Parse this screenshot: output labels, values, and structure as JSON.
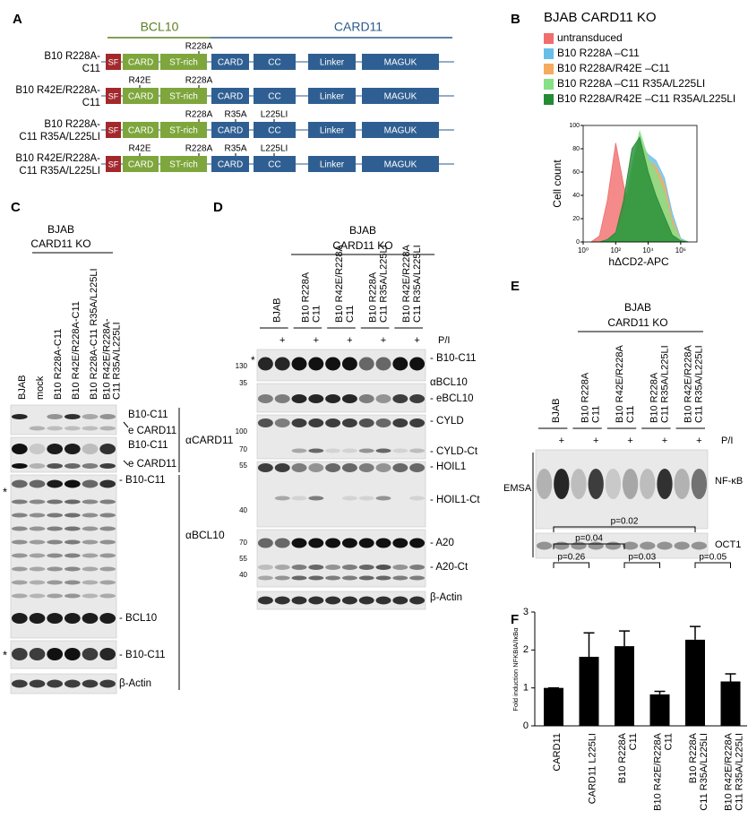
{
  "panel_a": {
    "label": "A",
    "bcl10": "BCL10",
    "card11": "CARD11",
    "constructs": [
      {
        "name": [
          "B10 R228A-",
          "C11"
        ],
        "domains": [
          "SF",
          "CARD",
          "ST-rich",
          "CARD",
          "CC",
          "Linker",
          "MAGUK"
        ],
        "mutations": [
          null,
          "R228A",
          null,
          null
        ]
      },
      {
        "name": [
          "B10 R42E/R228A-",
          "C11"
        ],
        "domains": [
          "SF",
          "CARD",
          "ST-rich",
          "CARD",
          "CC",
          "Linker",
          "MAGUK"
        ],
        "mutations": [
          "R42E",
          "R228A",
          null,
          null
        ]
      },
      {
        "name": [
          "B10 R228A-",
          "C11 R35A/L225LI"
        ],
        "domains": [
          "SF",
          "CARD",
          "ST-rich",
          "CARD",
          "CC",
          "Linker",
          "MAGUK"
        ],
        "mutations": [
          null,
          "R228A",
          "R35A",
          "L225LI"
        ]
      },
      {
        "name": [
          "B10 R42E/R228A-",
          "C11 R35A/L225LI"
        ],
        "domains": [
          "SF",
          "CARD",
          "ST-rich",
          "CARD",
          "CC",
          "Linker",
          "MAGUK"
        ],
        "mutations": [
          "R42E",
          "R228A",
          "R35A",
          "L225LI"
        ]
      }
    ]
  },
  "chart_data": [
    {
      "type": "area",
      "label": "B",
      "title": "BJAB CARD11 KO",
      "xlabel": "hΔCD2-APC",
      "ylabel": "Cell count",
      "xscale": "log",
      "x": [
        3,
        10,
        30,
        100,
        300,
        1000,
        3000,
        10000,
        30000,
        100000,
        300000,
        1000000,
        3000000
      ],
      "xlim": [
        1,
        10000000
      ],
      "xticks": [
        {
          "value": 1,
          "label": "10⁰"
        },
        {
          "value": 100,
          "label": "10²"
        },
        {
          "value": 10000,
          "label": "10⁴"
        },
        {
          "value": 1000000,
          "label": "10⁶"
        }
      ],
      "ylim": [
        0,
        100
      ],
      "yticks": [
        0,
        20,
        40,
        60,
        80,
        100
      ],
      "series": [
        {
          "name": "untransduced",
          "color": "#f26d6d",
          "values": [
            0,
            5,
            35,
            85,
            50,
            15,
            3,
            0,
            0,
            0,
            0,
            0,
            0
          ]
        },
        {
          "name": "B10 R228A –C11",
          "color": "#67bfe8",
          "values": [
            0,
            0,
            1,
            5,
            20,
            55,
            85,
            75,
            70,
            55,
            25,
            3,
            0
          ]
        },
        {
          "name": "B10 R228A/R42E –C11",
          "color": "#f5ac5e",
          "values": [
            0,
            0,
            1,
            5,
            22,
            58,
            90,
            70,
            65,
            50,
            20,
            2,
            0
          ]
        },
        {
          "name": "B10 R228A –C11 R35A/L225LI",
          "color": "#86e086",
          "values": [
            0,
            0,
            1,
            6,
            25,
            65,
            95,
            72,
            60,
            42,
            15,
            2,
            0
          ]
        },
        {
          "name": "B10 R228A/R42E –C11 R35A/L225LI",
          "color": "#238c34",
          "values": [
            0,
            0,
            2,
            8,
            35,
            80,
            90,
            60,
            40,
            22,
            6,
            1,
            0
          ]
        }
      ]
    },
    {
      "type": "bar",
      "label": "F",
      "ylabel": "Fold induction NFKBIA/IκBα",
      "categories": [
        [
          "CARD11"
        ],
        [
          "CARD11 L225LI"
        ],
        [
          "B10 R228A",
          "C11"
        ],
        [
          "B10 R42E/R228A",
          "C11"
        ],
        [
          "B10 R228A",
          "C11 R35A/L225LI"
        ],
        [
          "B10 R42E/R228A",
          "C11 R35A/L225LI"
        ]
      ],
      "values": [
        1,
        1.82,
        2.1,
        0.83,
        2.27,
        1.17
      ],
      "errors": [
        0,
        0.63,
        0.4,
        0.08,
        0.35,
        0.2
      ],
      "color": "#000000",
      "ylim": [
        0,
        3
      ],
      "yticks": [
        0,
        1,
        2,
        3
      ],
      "annotations": [
        {
          "text": "p=0.26",
          "from": 0,
          "to": 1
        },
        {
          "text": "p=0.04",
          "from": 0,
          "to": 2
        },
        {
          "text": "p=0.02",
          "from": 0,
          "to": 4
        },
        {
          "text": "p=0.03",
          "from": 2,
          "to": 3
        },
        {
          "text": "p=0.05",
          "from": 4,
          "to": 5
        }
      ]
    }
  ],
  "panel_c": {
    "label": "C",
    "header": [
      "BJAB",
      "CARD11 KO"
    ],
    "lanes": [
      [
        "BJAB"
      ],
      [
        "mock"
      ],
      [
        "B10 R228A-C11"
      ],
      [
        "B10 R42E/R228A-C11"
      ],
      [
        "B10 R228A-C11 R35A/L225LI"
      ],
      [
        "B10 R42E/R228A-",
        "C11 R35A/L225LI"
      ]
    ],
    "band_labels": [
      "B10-C11",
      "e CARD11",
      "B10-C11",
      "e CARD11",
      "- B10-C11",
      "- BCL10",
      "- B10-C11",
      "β-Actin"
    ],
    "antibodies": [
      "αCARD11",
      "αBCL10"
    ],
    "stars": [
      "*",
      "*"
    ]
  },
  "panel_d": {
    "label": "D",
    "header": [
      "BJAB",
      "CARD11 KO"
    ],
    "lanes": [
      [
        "BJAB"
      ],
      [
        "B10 R228A",
        "C11"
      ],
      [
        "B10 R42E/R228A",
        "C11"
      ],
      [
        "B10 R228A",
        "C11 R35A/L225LI"
      ],
      [
        "B10 R42E/R228A",
        "C11 R35A/L225LI"
      ]
    ],
    "plus": [
      "+",
      "+",
      "+",
      "+",
      "+"
    ],
    "treatment": "P/I",
    "markers": [
      130,
      35,
      100,
      70,
      55,
      40,
      70,
      55,
      40
    ],
    "band_labels": [
      "- B10-C11",
      "αBCL10",
      "- eBCL10",
      "- CYLD",
      "- CYLD-Ct",
      "- HOIL1",
      "- HOIL1-Ct",
      "- A20",
      "- A20-Ct",
      "β-Actin"
    ],
    "star": "*"
  },
  "panel_e": {
    "label": "E",
    "header": [
      "BJAB",
      "CARD11 KO"
    ],
    "lanes": [
      [
        "BJAB"
      ],
      [
        "B10 R228A",
        "C11"
      ],
      [
        "B10 R42E/R228A",
        "C11"
      ],
      [
        "B10 R228A",
        "C11 R35A/L225LI"
      ],
      [
        "B10 R42E/R228A",
        "C11 R35A/L225LI"
      ]
    ],
    "plus": [
      "+",
      "+",
      "+",
      "+",
      "+"
    ],
    "treatment": "P/I",
    "assay": "EMSA",
    "band_labels": [
      "NF-κB",
      "OCT1"
    ]
  }
}
